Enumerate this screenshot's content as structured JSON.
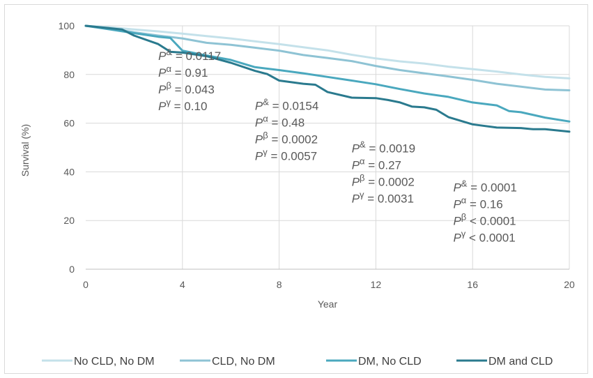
{
  "chart_data": {
    "type": "line",
    "title": "",
    "xlabel": "Year",
    "ylabel": "Survival (%)",
    "xlim": [
      0,
      20
    ],
    "ylim": [
      0,
      100
    ],
    "x_ticks": [
      0,
      4,
      8,
      12,
      16,
      20
    ],
    "y_ticks": [
      0,
      20,
      40,
      60,
      80,
      100
    ],
    "grid": "vertical and horizontal",
    "legend_position": "bottom",
    "series": [
      {
        "name": "No CLD, No DM",
        "color": "#c4e1ea",
        "points": [
          [
            0,
            100
          ],
          [
            1,
            99.4
          ],
          [
            2,
            98.5
          ],
          [
            3,
            97.7
          ],
          [
            4,
            96.8
          ],
          [
            5,
            95.8
          ],
          [
            6,
            94.8
          ],
          [
            7,
            93.6
          ],
          [
            8,
            92.5
          ],
          [
            9,
            91.2
          ],
          [
            10,
            89.9
          ],
          [
            11,
            88.1
          ],
          [
            12,
            86.6
          ],
          [
            13,
            85.4
          ],
          [
            14,
            84.5
          ],
          [
            15,
            83.2
          ],
          [
            16,
            82.2
          ],
          [
            17,
            81.2
          ],
          [
            18,
            80
          ],
          [
            19,
            79
          ],
          [
            20,
            78.4
          ]
        ]
      },
      {
        "name": "CLD, No DM",
        "color": "#8ec3d4",
        "points": [
          [
            0,
            100
          ],
          [
            1,
            99
          ],
          [
            2,
            97.3
          ],
          [
            3,
            96
          ],
          [
            4,
            94.8
          ],
          [
            5,
            93
          ],
          [
            6,
            92.2
          ],
          [
            7,
            91
          ],
          [
            8,
            89.8
          ],
          [
            9,
            88
          ],
          [
            10,
            86.8
          ],
          [
            11,
            85.5
          ],
          [
            12,
            83.5
          ],
          [
            13,
            81.8
          ],
          [
            14,
            80.5
          ],
          [
            15,
            79.2
          ],
          [
            16,
            77.8
          ],
          [
            17,
            76.2
          ],
          [
            18,
            75
          ],
          [
            19,
            73.8
          ],
          [
            20,
            73.5
          ]
        ]
      },
      {
        "name": "DM, No CLD",
        "color": "#4aa8be",
        "points": [
          [
            0,
            100
          ],
          [
            1,
            98.5
          ],
          [
            2,
            97
          ],
          [
            3,
            95.5
          ],
          [
            3.5,
            95
          ],
          [
            4,
            89.8
          ],
          [
            5,
            87.8
          ],
          [
            6,
            86
          ],
          [
            7,
            83
          ],
          [
            8,
            81.8
          ],
          [
            9,
            80.5
          ],
          [
            10,
            79
          ],
          [
            11,
            77.5
          ],
          [
            12,
            76
          ],
          [
            13,
            74
          ],
          [
            14,
            72.2
          ],
          [
            15,
            70.8
          ],
          [
            16,
            68.5
          ],
          [
            17,
            67.3
          ],
          [
            17.5,
            65
          ],
          [
            18,
            64.5
          ],
          [
            19,
            62.3
          ],
          [
            20,
            60.7
          ]
        ]
      },
      {
        "name": "DM and CLD",
        "color": "#2a7a8e",
        "points": [
          [
            0,
            100
          ],
          [
            1,
            99
          ],
          [
            1.5,
            98.5
          ],
          [
            2,
            96
          ],
          [
            3,
            92.5
          ],
          [
            3.5,
            89.3
          ],
          [
            4,
            89
          ],
          [
            5,
            87.5
          ],
          [
            6,
            84.8
          ],
          [
            7,
            81.5
          ],
          [
            7.5,
            80.2
          ],
          [
            8,
            77.5
          ],
          [
            9,
            76.2
          ],
          [
            9.5,
            75.8
          ],
          [
            10,
            72.8
          ],
          [
            11,
            70.5
          ],
          [
            12,
            70.3
          ],
          [
            12.5,
            69.5
          ],
          [
            13,
            68.5
          ],
          [
            13.5,
            66.8
          ],
          [
            14,
            66.5
          ],
          [
            14.5,
            65.5
          ],
          [
            15,
            62.5
          ],
          [
            16,
            59.5
          ],
          [
            17,
            58.2
          ],
          [
            18,
            58
          ],
          [
            18.5,
            57.5
          ],
          [
            19,
            57.5
          ],
          [
            20,
            56.5
          ]
        ]
      }
    ],
    "annotations": [
      {
        "anchor_x": 3,
        "anchor_y": 86,
        "lines": [
          {
            "sym": "P",
            "sup": "&",
            "rest": " = 0.0117"
          },
          {
            "sym": "P",
            "sup": "α",
            "rest": " = 0.91"
          },
          {
            "sym": "P",
            "sup": "β",
            "rest": " = 0.043"
          },
          {
            "sym": "P",
            "sup": "γ",
            "rest": " = 0.10"
          }
        ]
      },
      {
        "anchor_x": 7,
        "anchor_y": 65.5,
        "lines": [
          {
            "sym": "P",
            "sup": "&",
            "rest": " = 0.0154"
          },
          {
            "sym": "P",
            "sup": "α",
            "rest": " = 0.48"
          },
          {
            "sym": "P",
            "sup": "β",
            "rest": " = 0.0002"
          },
          {
            "sym": "P",
            "sup": "γ",
            "rest": " = 0.0057"
          }
        ]
      },
      {
        "anchor_x": 11,
        "anchor_y": 48,
        "lines": [
          {
            "sym": "P",
            "sup": "&",
            "rest": " = 0.0019"
          },
          {
            "sym": "P",
            "sup": "α",
            "rest": " = 0.27"
          },
          {
            "sym": "P",
            "sup": "β",
            "rest": " = 0.0002"
          },
          {
            "sym": "P",
            "sup": "γ",
            "rest": " = 0.0031"
          }
        ]
      },
      {
        "anchor_x": 15.2,
        "anchor_y": 32,
        "lines": [
          {
            "sym": "P",
            "sup": "&",
            "rest": " = 0.0001"
          },
          {
            "sym": "P",
            "sup": "α",
            "rest": " = 0.16"
          },
          {
            "sym": "P",
            "sup": "β",
            "rest": " < 0.0001"
          },
          {
            "sym": "P",
            "sup": "γ",
            "rest": " < 0.0001"
          }
        ]
      }
    ]
  }
}
